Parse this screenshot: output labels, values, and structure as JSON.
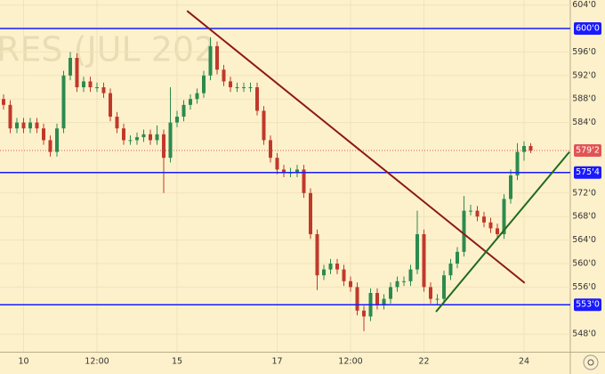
{
  "chart_data": {
    "type": "candlestick",
    "watermark": "RES (JUL 202",
    "categories": [
      null,
      null,
      null,
      "10",
      null,
      null,
      null,
      null,
      null,
      null,
      null,
      null,
      null,
      null,
      "12:00",
      null,
      null,
      null,
      null,
      null,
      null,
      null,
      null,
      null,
      null,
      null,
      "15",
      null,
      null,
      null,
      null,
      null,
      null,
      null,
      null,
      null,
      null,
      null,
      null,
      null,
      null,
      "17",
      null,
      null,
      null,
      null,
      null,
      null,
      null,
      null,
      null,
      null,
      "12:00",
      null,
      null,
      null,
      null,
      null,
      null,
      null,
      null,
      null,
      null,
      "22",
      null,
      null,
      null,
      null,
      null,
      null,
      null,
      null,
      null,
      null,
      null,
      null,
      null,
      null,
      "24",
      null
    ],
    "open": [
      588,
      587,
      583,
      584,
      583,
      584,
      583,
      581,
      579,
      583,
      592,
      595,
      590,
      591,
      590,
      590,
      589,
      585,
      583,
      581,
      581,
      581.5,
      582,
      581,
      582,
      578,
      584,
      585,
      587,
      588,
      589,
      592,
      597,
      593,
      591,
      590,
      590,
      590,
      590,
      586,
      581,
      578,
      576,
      575.5,
      575.5,
      576,
      572,
      565,
      558,
      559,
      560,
      559,
      557,
      556,
      552,
      551,
      555,
      553,
      554,
      556,
      557,
      557,
      559,
      565,
      556,
      554,
      554,
      558,
      560,
      562,
      569,
      569,
      568,
      567,
      566,
      565,
      571,
      575,
      579,
      580
    ],
    "high": [
      588.8,
      587.8,
      584.8,
      584.8,
      584.8,
      584.8,
      583.8,
      581.8,
      583.8,
      592.8,
      596,
      595.8,
      591.8,
      591.8,
      590.8,
      590.8,
      589.8,
      585.8,
      583.8,
      581.8,
      582.3,
      582.8,
      582.8,
      583.5,
      582.8,
      590,
      586,
      587.8,
      588.8,
      589.8,
      592.8,
      598.5,
      597.8,
      593.8,
      591.8,
      590.8,
      590.8,
      590.8,
      590.8,
      586.8,
      581.8,
      578.8,
      576.8,
      576.3,
      576.8,
      576.8,
      572.8,
      565.8,
      559.8,
      560.8,
      560.8,
      559.8,
      557.8,
      556.8,
      552.8,
      555.8,
      555.8,
      554.8,
      556.8,
      557.8,
      557.8,
      559.8,
      569,
      565.8,
      556.8,
      554.8,
      558.8,
      560.8,
      562.8,
      571.5,
      570,
      569.8,
      568.8,
      567.8,
      566.8,
      571.8,
      576,
      580.5,
      580.8,
      580.5
    ],
    "low": [
      586.2,
      582.2,
      582.2,
      582.2,
      582.2,
      582.2,
      580.2,
      578.2,
      578.2,
      582.2,
      591.2,
      589.2,
      589.2,
      589.2,
      589.2,
      588.2,
      584.2,
      582.2,
      580.2,
      580.2,
      580.2,
      580.7,
      580.2,
      580.2,
      572,
      577.2,
      583.2,
      584.2,
      586.2,
      587.2,
      588.2,
      591.2,
      592.2,
      590.2,
      589.2,
      589.2,
      589.2,
      589.2,
      585.2,
      580.2,
      577.2,
      575.2,
      574.7,
      574.7,
      574.7,
      571.2,
      564.2,
      555.5,
      557.2,
      558.2,
      558.2,
      556.2,
      555.2,
      551.2,
      548.5,
      550.2,
      552.2,
      552.2,
      553.2,
      555.2,
      556.2,
      556.2,
      558.2,
      555.2,
      553.2,
      553,
      553.2,
      557.2,
      559.2,
      561.2,
      568.2,
      567.2,
      566.2,
      565.2,
      564.2,
      564.2,
      570.2,
      574.2,
      577.5,
      578.8
    ],
    "close": [
      587,
      583,
      584,
      583,
      584,
      583,
      581,
      579,
      583,
      592,
      595,
      590,
      591,
      590,
      590,
      589,
      585,
      583,
      581,
      581,
      581.5,
      582,
      581,
      582,
      578,
      584,
      585,
      587,
      588,
      589,
      592,
      597,
      593,
      591,
      590,
      590,
      590,
      590,
      586,
      581,
      578,
      576,
      575.5,
      575.5,
      576,
      572,
      565,
      558,
      559,
      560,
      559,
      557,
      556,
      552,
      551,
      555,
      553,
      554,
      556,
      557,
      557,
      559,
      565,
      556,
      554,
      554,
      558,
      560,
      562,
      569,
      569,
      568,
      567,
      566,
      565,
      571,
      575,
      579,
      580,
      579.25
    ],
    "up_color": "#2c8a4f",
    "down_color": "#c0392b",
    "ylim": [
      545,
      604.85
    ],
    "yticks": [
      {
        "value": 548,
        "label": "548'0"
      },
      {
        "value": 556,
        "label": "556'0"
      },
      {
        "value": 560,
        "label": "560'0"
      },
      {
        "value": 564,
        "label": "564'0"
      },
      {
        "value": 568,
        "label": "568'0"
      },
      {
        "value": 572,
        "label": "572'0"
      },
      {
        "value": 584,
        "label": "584'0"
      },
      {
        "value": 588,
        "label": "588'0"
      },
      {
        "value": 592,
        "label": "592'0"
      },
      {
        "value": 596,
        "label": "596'0"
      },
      {
        "value": 604,
        "label": "604'0"
      }
    ],
    "grid": true,
    "levels": [
      {
        "value": 600,
        "label": "600'0"
      },
      {
        "value": 575.5,
        "label": "575'4"
      },
      {
        "value": 553,
        "label": "553'0"
      }
    ],
    "level_color": "#1a1aff",
    "last_price": {
      "value": 579.25,
      "label": "579'2"
    },
    "last_price_color": "#e05555",
    "trendlines": [
      {
        "color": "#8b1a1a",
        "x": [
          27.5,
          78.1
        ],
        "y": [
          603,
          556.7
        ]
      },
      {
        "color": "#1f6b1f",
        "x": [
          64.8,
          84.8
        ],
        "y": [
          551.8,
          579
        ]
      }
    ]
  }
}
